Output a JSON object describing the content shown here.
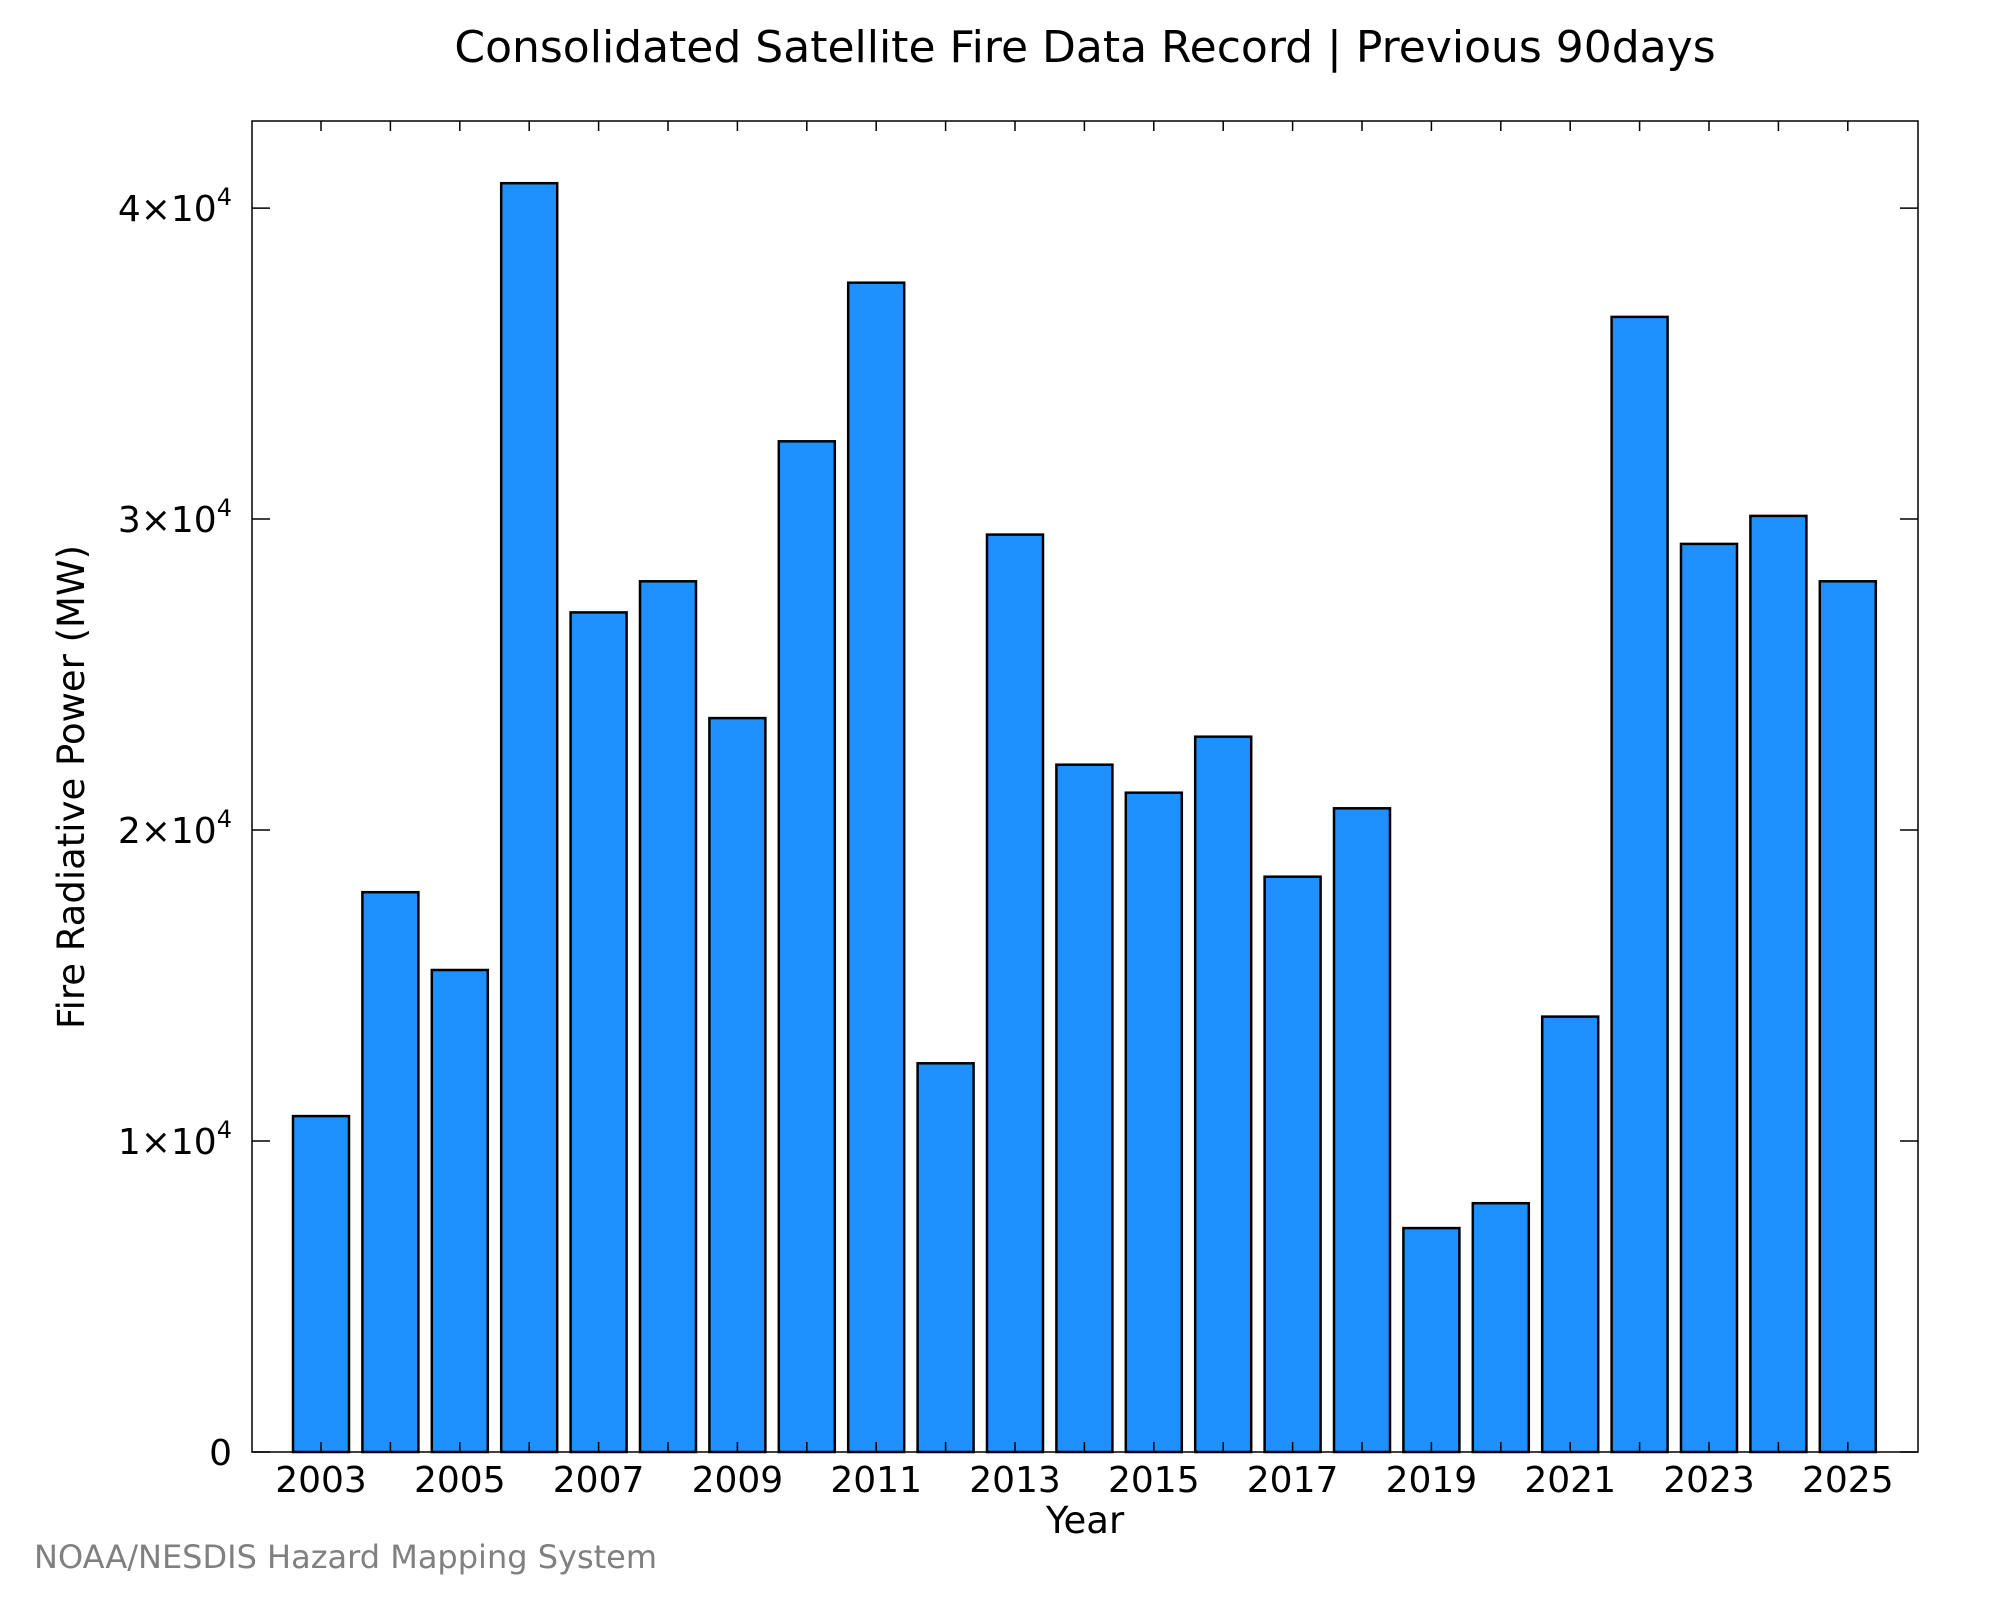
{
  "chart_data": {
    "type": "bar",
    "title": "Consolidated Satellite Fire Data Record | Previous 90days",
    "xlabel": "Year",
    "ylabel": "Fire Radiative Power (MW)",
    "categories": [
      "2003",
      "2004",
      "2005",
      "2006",
      "2007",
      "2008",
      "2009",
      "2010",
      "2011",
      "2012",
      "2013",
      "2014",
      "2015",
      "2016",
      "2017",
      "2018",
      "2019",
      "2020",
      "2021",
      "2022",
      "2023",
      "2024",
      "2025"
    ],
    "values": [
      10800,
      18000,
      15500,
      40800,
      27000,
      28000,
      23600,
      32500,
      37600,
      12500,
      29500,
      22100,
      21200,
      23000,
      18500,
      20700,
      7200,
      8000,
      14000,
      36500,
      29200,
      30100,
      28000
    ],
    "x_tick_labels": [
      "2003",
      "2005",
      "2007",
      "2009",
      "2011",
      "2013",
      "2015",
      "2017",
      "2019",
      "2021",
      "2023",
      "2025"
    ],
    "y_ticks": [
      {
        "value": 0,
        "mantissa": "0",
        "exponent": ""
      },
      {
        "value": 10000,
        "mantissa": "1×10",
        "exponent": "4"
      },
      {
        "value": 20000,
        "mantissa": "2×10",
        "exponent": "4"
      },
      {
        "value": 30000,
        "mantissa": "3×10",
        "exponent": "4"
      },
      {
        "value": 40000,
        "mantissa": "4×10",
        "exponent": "4"
      }
    ],
    "ylim": [
      0,
      42800
    ],
    "grid": false,
    "bar_color": "#1e90ff",
    "edge_color": "#000000"
  },
  "credit": "NOAA/NESDIS Hazard Mapping System"
}
